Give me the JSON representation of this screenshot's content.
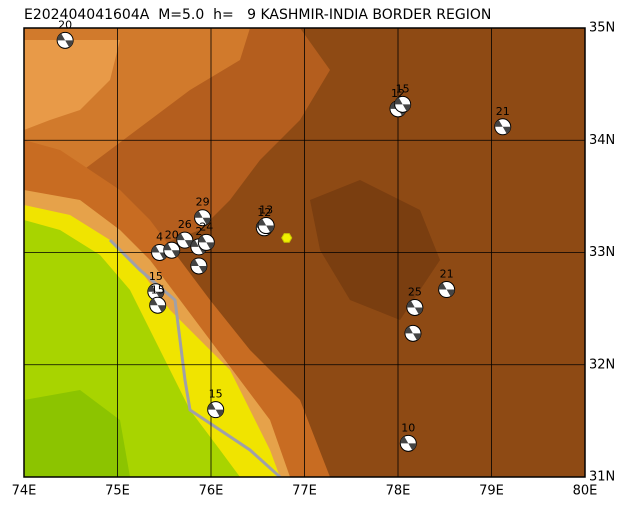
{
  "chart_data": {
    "type": "map",
    "title": "E202404041604A  M=5.0  h=   9 KASHMIR-INDIA BORDER REGION",
    "xlim": [
      74,
      80
    ],
    "ylim": [
      31,
      35
    ],
    "xticks": [
      {
        "value": 74,
        "label": "74E"
      },
      {
        "value": 75,
        "label": "75E"
      },
      {
        "value": 76,
        "label": "76E"
      },
      {
        "value": 77,
        "label": "77E"
      },
      {
        "value": 78,
        "label": "78E"
      },
      {
        "value": 79,
        "label": "79E"
      },
      {
        "value": 80,
        "label": "80E"
      }
    ],
    "yticks": [
      {
        "value": 31,
        "label": "31N"
      },
      {
        "value": 32,
        "label": "32N"
      },
      {
        "value": 33,
        "label": "33N"
      },
      {
        "value": 34,
        "label": "34N"
      },
      {
        "value": 35,
        "label": "35N"
      }
    ],
    "grid": true,
    "epicenter": {
      "x": 76.81,
      "y": 33.13,
      "color": "#f0f000"
    },
    "events": {
      "x": [
        74.44,
        78.0,
        78.05,
        79.12,
        75.91,
        76.57,
        76.59,
        75.45,
        75.58,
        75.72,
        75.87,
        75.95,
        75.87,
        75.41,
        75.43,
        78.52,
        78.18,
        78.16,
        76.05,
        78.11
      ],
      "y": [
        34.89,
        34.28,
        34.32,
        34.12,
        33.31,
        33.22,
        33.24,
        33.0,
        33.02,
        33.11,
        33.05,
        33.09,
        32.88,
        32.65,
        32.53,
        32.67,
        32.51,
        32.28,
        31.6,
        31.3
      ],
      "labels": [
        "20",
        "12",
        "15",
        "21",
        "29",
        "12",
        "13",
        "4",
        "20",
        "26",
        "2",
        "24",
        null,
        "15",
        "15",
        "21",
        "25",
        null,
        "15",
        "10"
      ]
    }
  }
}
